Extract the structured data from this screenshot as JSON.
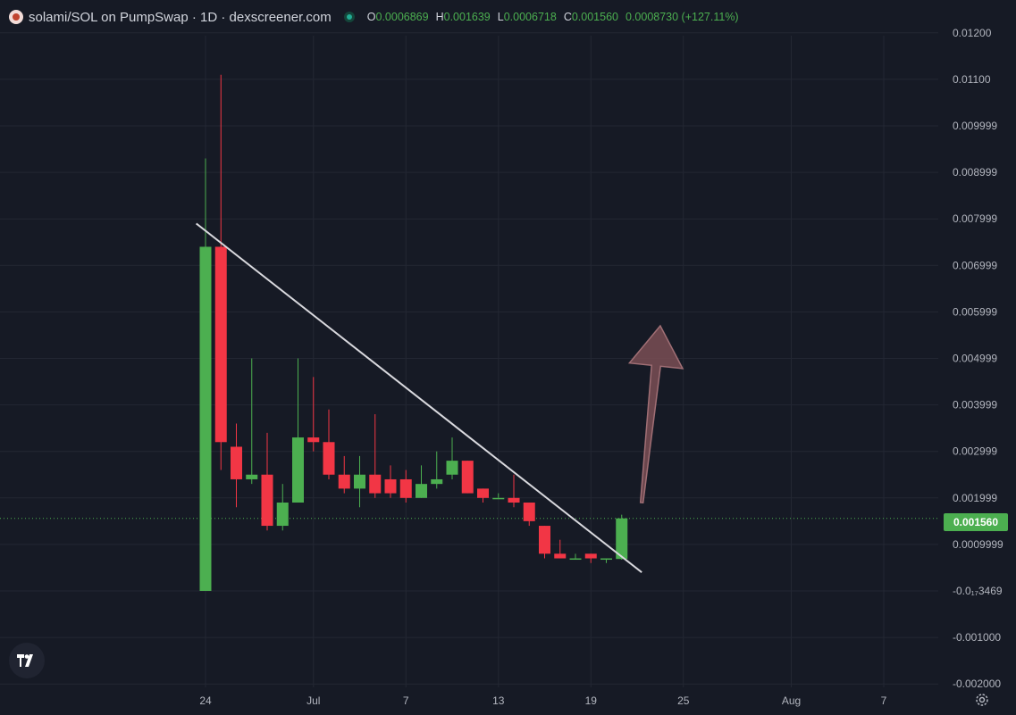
{
  "header": {
    "symbol_title": "solami/SOL on PumpSwap · 1D · dexscreener.com",
    "ohlc": [
      {
        "key": "O",
        "value": "0.0006869"
      },
      {
        "key": "H",
        "value": "0.001639"
      },
      {
        "key": "L",
        "value": "0.0006718"
      },
      {
        "key": "C",
        "value": "0.001560"
      }
    ],
    "change": "0.0008730 (+127.11%)"
  },
  "current_price_label": "0.001560",
  "colors": {
    "up": "#4caf50",
    "down": "#f23645",
    "background": "#161a25",
    "grid": "#232733",
    "axis_text": "#b2b5be",
    "trendline": "#d9d9de",
    "arrow": "#7a4f55"
  },
  "icons": {
    "tradingview_logo": "tradingview-logo-icon",
    "settings": "gear-icon",
    "status": "status-dot-icon"
  },
  "chart_data": {
    "type": "candlestick",
    "y_axis": {
      "ticks": [
        {
          "value": 0.012,
          "label": "0.01200"
        },
        {
          "value": 0.011,
          "label": "0.01100"
        },
        {
          "value": 0.01,
          "label": "0.009999"
        },
        {
          "value": 0.009,
          "label": "0.008999"
        },
        {
          "value": 0.008,
          "label": "0.007999"
        },
        {
          "value": 0.007,
          "label": "0.006999"
        },
        {
          "value": 0.006,
          "label": "0.005999"
        },
        {
          "value": 0.005,
          "label": "0.004999"
        },
        {
          "value": 0.004,
          "label": "0.003999"
        },
        {
          "value": 0.003,
          "label": "0.002999"
        },
        {
          "value": 0.002,
          "label": "0.001999"
        },
        {
          "value": 0.001,
          "label": "0.0009999"
        },
        {
          "value": 0.0,
          "label": "-0.0₁₇3469"
        },
        {
          "value": -0.001,
          "label": "-0.001000"
        },
        {
          "value": -0.002,
          "label": "-0.002000"
        }
      ],
      "range": [
        -0.002,
        0.012
      ]
    },
    "x_axis": {
      "ticks": [
        {
          "day": 0,
          "label": "24"
        },
        {
          "day": 7,
          "label": "Jul"
        },
        {
          "day": 13,
          "label": "7"
        },
        {
          "day": 19,
          "label": "13"
        },
        {
          "day": 25,
          "label": "19"
        },
        {
          "day": 31,
          "label": "25"
        },
        {
          "day": 38,
          "label": "Aug"
        },
        {
          "day": 44,
          "label": "7"
        }
      ]
    },
    "candles": [
      {
        "day": 0,
        "o": 0.0,
        "h": 0.0093,
        "l": 0.0,
        "c": 0.0074
      },
      {
        "day": 1,
        "o": 0.0074,
        "h": 0.0111,
        "l": 0.0026,
        "c": 0.0032
      },
      {
        "day": 2,
        "o": 0.0031,
        "h": 0.0036,
        "l": 0.0018,
        "c": 0.0024
      },
      {
        "day": 3,
        "o": 0.0024,
        "h": 0.005,
        "l": 0.0023,
        "c": 0.0025
      },
      {
        "day": 4,
        "o": 0.0025,
        "h": 0.0034,
        "l": 0.0013,
        "c": 0.0014
      },
      {
        "day": 5,
        "o": 0.0014,
        "h": 0.0023,
        "l": 0.0013,
        "c": 0.0019
      },
      {
        "day": 6,
        "o": 0.0019,
        "h": 0.005,
        "l": 0.0019,
        "c": 0.0033
      },
      {
        "day": 7,
        "o": 0.0033,
        "h": 0.0046,
        "l": 0.003,
        "c": 0.0032
      },
      {
        "day": 8,
        "o": 0.0032,
        "h": 0.0039,
        "l": 0.0024,
        "c": 0.0025
      },
      {
        "day": 9,
        "o": 0.0025,
        "h": 0.0029,
        "l": 0.0021,
        "c": 0.0022
      },
      {
        "day": 10,
        "o": 0.0022,
        "h": 0.0029,
        "l": 0.0018,
        "c": 0.0025
      },
      {
        "day": 11,
        "o": 0.0025,
        "h": 0.0038,
        "l": 0.002,
        "c": 0.0021
      },
      {
        "day": 12,
        "o": 0.0024,
        "h": 0.0027,
        "l": 0.002,
        "c": 0.0021
      },
      {
        "day": 13,
        "o": 0.0024,
        "h": 0.0026,
        "l": 0.0019,
        "c": 0.002
      },
      {
        "day": 14,
        "o": 0.002,
        "h": 0.0027,
        "l": 0.002,
        "c": 0.0023
      },
      {
        "day": 15,
        "o": 0.0023,
        "h": 0.003,
        "l": 0.0022,
        "c": 0.0024
      },
      {
        "day": 16,
        "o": 0.0025,
        "h": 0.0033,
        "l": 0.0024,
        "c": 0.0028
      },
      {
        "day": 17,
        "o": 0.0028,
        "h": 0.0028,
        "l": 0.0021,
        "c": 0.0021
      },
      {
        "day": 18,
        "o": 0.0022,
        "h": 0.0022,
        "l": 0.0019,
        "c": 0.002
      },
      {
        "day": 19,
        "o": 0.002,
        "h": 0.0021,
        "l": 0.002,
        "c": 0.002
      },
      {
        "day": 20,
        "o": 0.002,
        "h": 0.0025,
        "l": 0.0018,
        "c": 0.0019
      },
      {
        "day": 21,
        "o": 0.0019,
        "h": 0.0019,
        "l": 0.0014,
        "c": 0.0015
      },
      {
        "day": 22,
        "o": 0.0014,
        "h": 0.0014,
        "l": 0.0007,
        "c": 0.0008
      },
      {
        "day": 23,
        "o": 0.0008,
        "h": 0.0011,
        "l": 0.0007,
        "c": 0.0007
      },
      {
        "day": 24,
        "o": 0.0007,
        "h": 0.0008,
        "l": 0.0007,
        "c": 0.0007
      },
      {
        "day": 25,
        "o": 0.0008,
        "h": 0.0008,
        "l": 0.0006,
        "c": 0.0007
      },
      {
        "day": 26,
        "o": 0.0007,
        "h": 0.0007,
        "l": 0.0006,
        "c": 0.0007
      },
      {
        "day": 27,
        "o": 0.0006869,
        "h": 0.001639,
        "l": 0.0006718,
        "c": 0.00156
      }
    ],
    "current_price": 0.00156,
    "trendline": {
      "from": {
        "day": -0.6,
        "value": 0.0079
      },
      "to": {
        "day": 28.3,
        "value": 0.0004
      }
    },
    "annotation": {
      "type": "arrow",
      "direction": "up",
      "from": {
        "day": 28.3,
        "value": 0.0019
      },
      "to": {
        "day": 29.5,
        "value": 0.0057
      }
    }
  }
}
